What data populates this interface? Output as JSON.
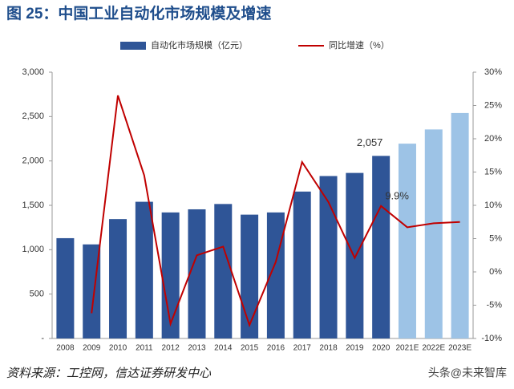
{
  "chart_data": {
    "type": "bar-line",
    "title": "图 25：中国工业自动化市场规模及增速",
    "categories": [
      "2008",
      "2009",
      "2010",
      "2011",
      "2012",
      "2013",
      "2014",
      "2015",
      "2016",
      "2017",
      "2018",
      "2019",
      "2020",
      "2021E",
      "2022E",
      "2023E"
    ],
    "series": [
      {
        "name": "自动化市场规模（亿元）",
        "type": "bar",
        "color": "#2f5597",
        "colors": [
          "#2f5597",
          "#2f5597",
          "#2f5597",
          "#2f5597",
          "#2f5597",
          "#2f5597",
          "#2f5597",
          "#2f5597",
          "#2f5597",
          "#2f5597",
          "#2f5597",
          "#2f5597",
          "#2f5597",
          "#9dc3e6",
          "#9dc3e6",
          "#9dc3e6"
        ],
        "values": [
          1130,
          1060,
          1345,
          1540,
          1420,
          1455,
          1515,
          1395,
          1420,
          1655,
          1830,
          1865,
          2057,
          2195,
          2355,
          2540
        ],
        "value_labels": [
          null,
          null,
          null,
          null,
          null,
          null,
          null,
          null,
          null,
          null,
          null,
          null,
          "2,057",
          null,
          null,
          null
        ]
      },
      {
        "name": "同比增速（%）",
        "type": "line",
        "color": "#c00000",
        "axis": "y2",
        "values": [
          null,
          -6.2,
          26.5,
          14.5,
          -7.8,
          2.5,
          3.8,
          -8,
          1.5,
          16.5,
          10.5,
          2.1,
          9.9,
          6.7,
          7.3,
          7.5
        ],
        "value_labels": [
          null,
          null,
          null,
          null,
          null,
          null,
          null,
          null,
          null,
          null,
          null,
          null,
          "9.9%",
          null,
          null,
          null
        ]
      }
    ],
    "ylim": [
      0,
      3000
    ],
    "yticks": [
      {
        "value": 0,
        "label": "-"
      },
      500,
      {
        "value": 1000,
        "label": "1,000"
      },
      {
        "value": 1500,
        "label": "1,500"
      },
      {
        "value": 2000,
        "label": "2,000"
      },
      {
        "value": 2500,
        "label": "2,500"
      },
      {
        "value": 3000,
        "label": "3,000"
      }
    ],
    "y2lim": [
      -10,
      30
    ],
    "y2ticks": [
      {
        "value": -10,
        "label": "-10%"
      },
      {
        "value": -5,
        "label": "-5%"
      },
      {
        "value": 0,
        "label": "0%"
      },
      {
        "value": 5,
        "label": "5%"
      },
      {
        "value": 10,
        "label": "10%"
      },
      {
        "value": 15,
        "label": "15%"
      },
      {
        "value": 20,
        "label": "20%"
      },
      {
        "value": 25,
        "label": "25%"
      },
      {
        "value": 30,
        "label": "30%"
      }
    ],
    "grid": false
  },
  "source": "资料来源：工控网，信达证券研发中心",
  "watermark": "头条@未来智库"
}
